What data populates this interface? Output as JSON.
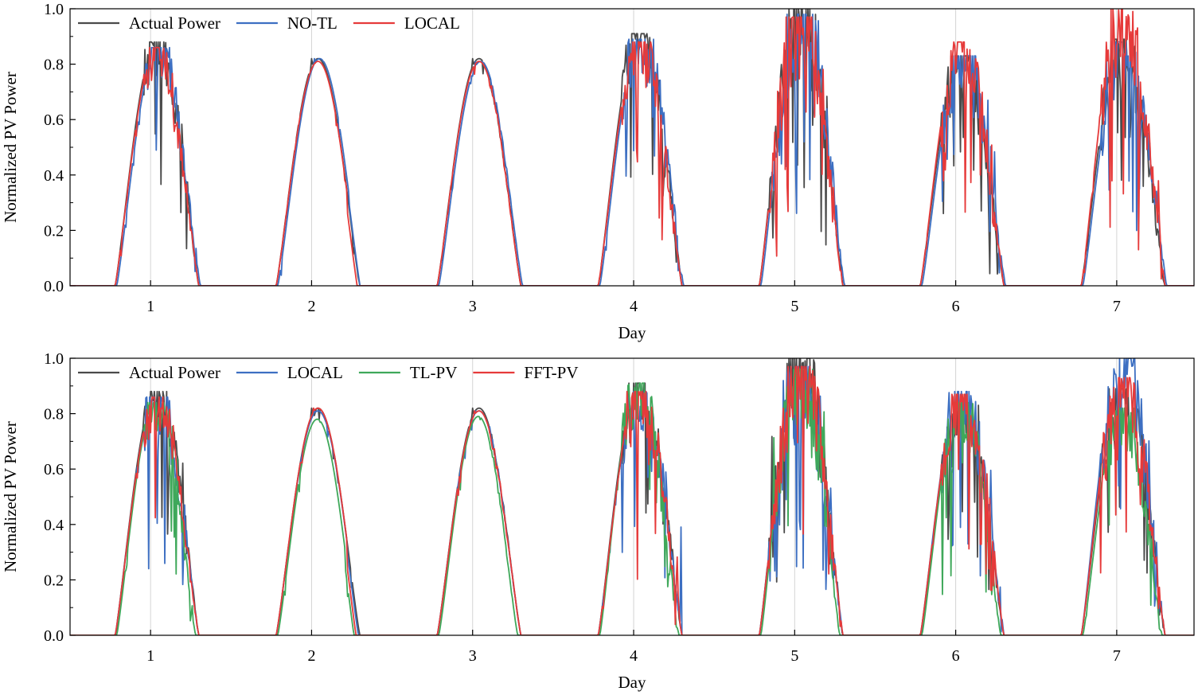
{
  "chart_data": [
    {
      "type": "line",
      "xlabel": "Day",
      "ylabel": "Normalized PV Power",
      "xlim": [
        0.5,
        7.48
      ],
      "ylim": [
        0,
        1.0
      ],
      "x_ticks": [
        "1",
        "2",
        "3",
        "4",
        "5",
        "6",
        "7"
      ],
      "y_ticks": [
        "0.0",
        "0.2",
        "0.4",
        "0.6",
        "0.8",
        "1.0"
      ],
      "grid": "vertical at day ticks",
      "legend": {
        "placement": "top-left",
        "columns": 3
      },
      "series": [
        {
          "name": "Actual Power",
          "color": "#4a4a4a",
          "daily_peaks": [
            0.88,
            0.82,
            0.82,
            0.91,
            1.0,
            0.83,
            0.89
          ],
          "sunrise_offset": -0.22,
          "sunset_offset": 0.3
        },
        {
          "name": "NO-TL",
          "color": "#3d6fc2",
          "daily_peaks": [
            0.86,
            0.82,
            0.81,
            0.89,
            0.98,
            0.83,
            0.88
          ],
          "sunrise_offset": -0.21,
          "sunset_offset": 0.31
        },
        {
          "name": "LOCAL",
          "color": "#e63a3a",
          "daily_peaks": [
            0.86,
            0.81,
            0.81,
            0.88,
            0.97,
            0.88,
            1.0
          ],
          "sunrise_offset": -0.22,
          "sunset_offset": 0.3
        }
      ]
    },
    {
      "type": "line",
      "xlabel": "Day",
      "ylabel": "Normalized PV Power",
      "xlim": [
        0.5,
        7.48
      ],
      "ylim": [
        0,
        1.0
      ],
      "x_ticks": [
        "1",
        "2",
        "3",
        "4",
        "5",
        "6",
        "7"
      ],
      "y_ticks": [
        "0.0",
        "0.2",
        "0.4",
        "0.6",
        "0.8",
        "1.0"
      ],
      "grid": "vertical at day ticks",
      "legend": {
        "placement": "top-left",
        "columns": 4
      },
      "series": [
        {
          "name": "Actual Power",
          "color": "#4a4a4a",
          "daily_peaks": [
            0.88,
            0.82,
            0.82,
            0.91,
            1.0,
            0.83,
            0.89
          ],
          "sunrise_offset": -0.22,
          "sunset_offset": 0.3
        },
        {
          "name": "LOCAL",
          "color": "#3d6fc2",
          "daily_peaks": [
            0.86,
            0.81,
            0.81,
            0.88,
            0.97,
            0.88,
            1.0
          ],
          "sunrise_offset": -0.22,
          "sunset_offset": 0.3
        },
        {
          "name": "TL-PV",
          "color": "#3fa85a",
          "daily_peaks": [
            0.84,
            0.78,
            0.79,
            0.91,
            0.96,
            0.84,
            0.82
          ],
          "sunrise_offset": -0.21,
          "sunset_offset": 0.28
        },
        {
          "name": "FFT-PV",
          "color": "#e63a3a",
          "daily_peaks": [
            0.86,
            0.82,
            0.81,
            0.88,
            0.97,
            0.87,
            0.93
          ],
          "sunrise_offset": -0.22,
          "sunset_offset": 0.3
        }
      ]
    }
  ]
}
